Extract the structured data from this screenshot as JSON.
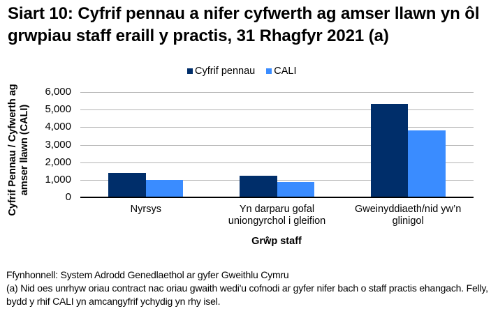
{
  "title": "Siart 10: Cyfrif pennau a nifer cyfwerth ag amser llawn yn ôl grwpiau staff eraill y practis, 31 Rhagfyr 2021 (a)",
  "legend": [
    {
      "label": "Cyfrif pennau",
      "color": "#002E6A"
    },
    {
      "label": "CALI",
      "color": "#3A8CFF"
    }
  ],
  "yaxis": {
    "label": "Cyfrif Pennau / Cyfwerth ag amser llawn (CALI)",
    "ticks": [
      "6,000",
      "5,000",
      "4,000",
      "3,000",
      "2,000",
      "1,000",
      "0"
    ]
  },
  "xaxis": {
    "label": "Grŵp staff",
    "categories": [
      "Nyrsys",
      "Yn darparu gofal uniongyrchol i gleifion",
      "Gweinyddiaeth/nid yw’n glinigol"
    ]
  },
  "notes": {
    "source": "Ffynhonnell: System Adrodd Genedlaethol ar gyfer Gweithlu Cymru",
    "footnote": "(a) Nid oes unrhyw oriau contract nac oriau gwaith wedi'u cofnodi ar gyfer nifer bach o staff practis ehangach. Felly, bydd y rhif CALI yn amcangyfrif ychydig yn rhy isel."
  },
  "chart_data": {
    "type": "bar",
    "title": "Siart 10: Cyfrif pennau a nifer cyfwerth ag amser llawn yn ôl grwpiau staff eraill y practis, 31 Rhagfyr 2021 (a)",
    "categories": [
      "Nyrsys",
      "Yn darparu gofal uniongyrchol i gleifion",
      "Gweinyddiaeth/nid yw’n glinigol"
    ],
    "series": [
      {
        "name": "Cyfrif pennau",
        "color": "#002E6A",
        "values": [
          1390,
          1230,
          5320
        ]
      },
      {
        "name": "CALI",
        "color": "#3A8CFF",
        "values": [
          990,
          870,
          3810
        ]
      }
    ],
    "xlabel": "Grŵp staff",
    "ylabel": "Cyfrif Pennau / Cyfwerth ag amser llawn (CALI)",
    "ylim": [
      0,
      6000
    ],
    "yticks": [
      0,
      1000,
      2000,
      3000,
      4000,
      5000,
      6000
    ],
    "grid": true,
    "legend_position": "top"
  }
}
